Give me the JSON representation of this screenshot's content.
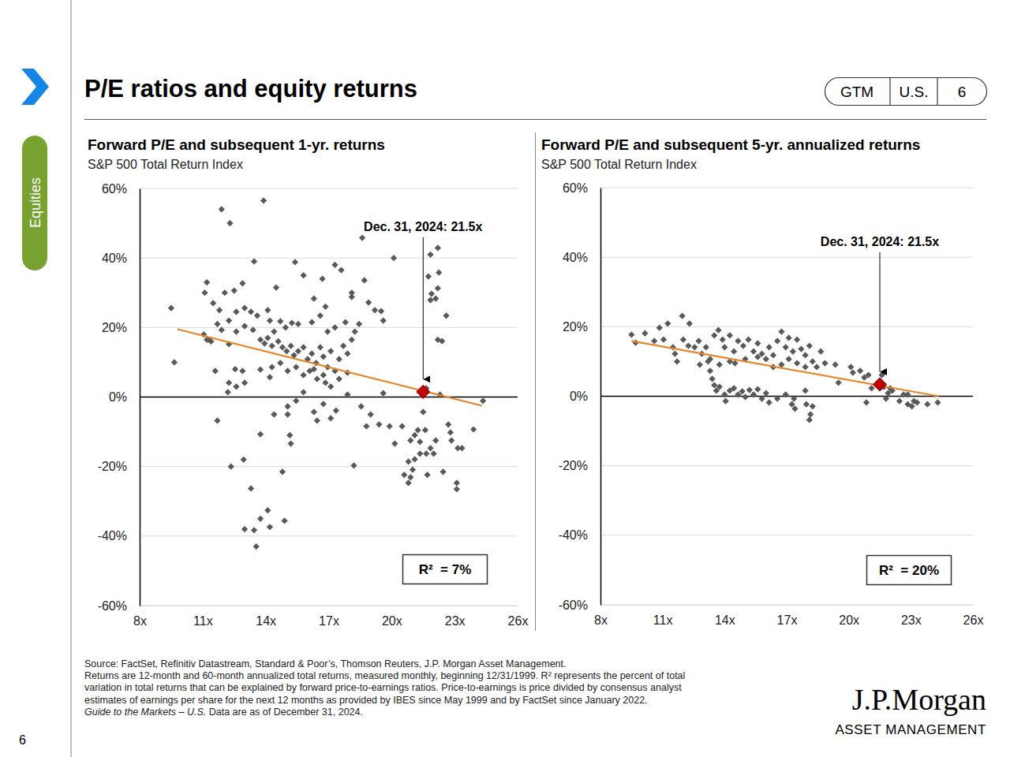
{
  "page": {
    "section": "Equities",
    "title": "P/E ratios and equity returns",
    "badge": [
      "GTM",
      "U.S.",
      "6"
    ],
    "footnotes": [
      "Source: FactSet, Refinitiv Datastream, Standard & Poor’s, Thomson Reuters, J.P. Morgan Asset Management.",
      "Returns are 12-month and 60-month annualized total returns, measured monthly, beginning 12/31/1999. R² represents the percent of total",
      "variation in total returns that can be explained by forward price-to-earnings ratios. Price-to-earnings is price divided by consensus analyst",
      "estimates of earnings per share for the next 12 months as provided by IBES since May 1999 and by FactSet since January 2022."
    ],
    "footnote_italic": "Guide to the Markets – U.S.",
    "footnote_rest": " Data are as of December 31, 2024.",
    "logo": "J.P.Morgan",
    "logo_sub": "ASSET MANAGEMENT",
    "page_number": "6"
  },
  "chart_data": [
    {
      "type": "scatter",
      "title": "Forward P/E and subsequent 1-yr. returns",
      "subtitle": "S&P 500 Total Return Index",
      "xlim": [
        8,
        26
      ],
      "xticks": [
        {
          "value": 8,
          "label": "8x"
        },
        {
          "value": 11,
          "label": "11x"
        },
        {
          "value": 14,
          "label": "14x"
        },
        {
          "value": 17,
          "label": "17x"
        },
        {
          "value": 20,
          "label": "20x"
        },
        {
          "value": 23,
          "label": "23x"
        },
        {
          "value": 26,
          "label": "26x"
        }
      ],
      "ylim": [
        -60,
        60
      ],
      "yticks": [
        {
          "value": -60,
          "label": "-60%"
        },
        {
          "value": -40,
          "label": "-40%"
        },
        {
          "value": -20,
          "label": "-20%"
        },
        {
          "value": 0,
          "label": "0%"
        },
        {
          "value": 20,
          "label": "20%"
        },
        {
          "value": 40,
          "label": "40%"
        },
        {
          "value": 60,
          "label": "60%"
        }
      ],
      "grid": true,
      "series": [
        {
          "type": "scatter",
          "marker": "diamond",
          "color": "#595959",
          "x": [
            9.5,
            9.65,
            11.9,
            12.3,
            13.9,
            11.2,
            11.1,
            11.5,
            12.05,
            12.5,
            12.9,
            13.45,
            14.5,
            15.4,
            15.8,
            16.7,
            17.3,
            17.6,
            18.6,
            20.1,
            18.7,
            18.1,
            18.1,
            18.9,
            19.2,
            19.5,
            19.6,
            11.8,
            11.05,
            11.2,
            11.4,
            11.7,
            11.9,
            12.25,
            12.6,
            13,
            13.3,
            13.6,
            14.1,
            14.2,
            14.4,
            14.7,
            14.95,
            15.25,
            15.55,
            13.75,
            13.95,
            14.1,
            14.3,
            14.6,
            14.8,
            15,
            15.2,
            15.35,
            15.55,
            15.8,
            16,
            16.2,
            16.4,
            16.6,
            16.75,
            16.95,
            17.1,
            17.3,
            17.5,
            17.7,
            17.9,
            18.1,
            18.25,
            18.45,
            17.8,
            17.3,
            16.95,
            16.6,
            16.2,
            16.3,
            16.85,
            16.1,
            16.45,
            16.85,
            17.1,
            17.5,
            17.9,
            16.75,
            16.3,
            15.8,
            15.45,
            15.05,
            14.7,
            14.3,
            14.2,
            13.75,
            12.9,
            12.55,
            12.25,
            12.6,
            13,
            12.2,
            11.6,
            11.3,
            13.4,
            13,
            12.6,
            12.25,
            11.7,
            12.35,
            12.95,
            13.3,
            13,
            13.45,
            13.55,
            13.75,
            14.1,
            14.2,
            14.9,
            13.75,
            14.4,
            14.8,
            15.15,
            15.2,
            15.05,
            15.05,
            15.45,
            15.8,
            16.3,
            16.75,
            17.1,
            16.45,
            17.35,
            17.9,
            18.2,
            18.55,
            18.8,
            19,
            19.4,
            19.6,
            19.9,
            20.15,
            20.5,
            20.6,
            20.8,
            20.9,
            21,
            21.1,
            20.9,
            21.25,
            21.35,
            21.5,
            21.6,
            21.65,
            21.7,
            21.85,
            21.35,
            21.1,
            20.8,
            22,
            22.1,
            22.45,
            22.7,
            22.85,
            23.1,
            23.1,
            23.15,
            23.35,
            23.9,
            24.35,
            22.8,
            21.85,
            22.2,
            21.75,
            21.9,
            22.2,
            22.1,
            21.85,
            22.25,
            22.2,
            22.4,
            22.6,
            22.3,
            21.65
          ],
          "values": [
            25.6,
            10,
            54,
            50,
            56.5,
            33,
            30,
            27,
            30,
            30.6,
            32.7,
            39,
            31.5,
            38.8,
            35,
            34,
            38,
            36.5,
            45.8,
            40,
            33.6,
            30,
            28.8,
            27.2,
            25,
            24.7,
            22,
            25,
            18,
            16.5,
            16,
            21,
            19.3,
            22,
            24.5,
            25.6,
            24.5,
            23.4,
            25,
            22,
            18.8,
            21.8,
            20,
            21.3,
            21,
            16.5,
            15.4,
            17,
            14.7,
            16,
            14.3,
            13.2,
            14.7,
            12,
            13.2,
            14.3,
            10.9,
            12.5,
            9.8,
            14.3,
            11.6,
            8.6,
            13.2,
            7.5,
            10.9,
            14.7,
            12.5,
            16.5,
            18.8,
            21,
            21.5,
            20,
            18.8,
            23.4,
            21.5,
            28.3,
            26,
            7.5,
            5.2,
            4.1,
            3,
            5.2,
            7,
            6.3,
            8,
            6.3,
            8.6,
            7.5,
            9.8,
            8.6,
            5.7,
            7.9,
            7.5,
            8,
            4.1,
            3,
            4.1,
            1.4,
            7.5,
            16.5,
            19.3,
            20.4,
            18.8,
            15.2,
            -6.8,
            -20,
            -18,
            -26.3,
            -38,
            -38.3,
            -43,
            -35,
            -32.6,
            -37.4,
            -35.6,
            -10.7,
            -5,
            -21.5,
            -11,
            -13.4,
            -2.7,
            -5,
            -1.1,
            1.4,
            -4.3,
            -2,
            -6.1,
            -6.8,
            -3.9,
            0.7,
            -19.7,
            -2.7,
            -8.4,
            -5,
            -7.9,
            1.1,
            -8.4,
            -13.4,
            -8.4,
            -22.4,
            -24.7,
            -23.1,
            -20.9,
            -17.9,
            -12.5,
            -9.5,
            -16.3,
            -4.3,
            -9.5,
            -16.3,
            -22.4,
            -14.7,
            -12.9,
            -11,
            -18.6,
            -16.3,
            -12.5,
            -21.5,
            -7.9,
            -12.5,
            -24.7,
            -26.5,
            -14.7,
            -14.7,
            -9.3,
            -1.1,
            -10.2,
            41,
            42.9,
            34.7,
            29.7,
            31.3,
            28.3,
            27.9,
            35.8,
            16.5,
            16.1,
            23.4,
            0.7,
            2.5
          ]
        },
        {
          "type": "line",
          "line_style": "solid",
          "color": "#e8862a",
          "x": [
            9.8,
            24.3
          ],
          "values": [
            19.5,
            -2.5
          ]
        },
        {
          "type": "scatter",
          "marker": "diamond",
          "color": "#c00000",
          "x": [
            21.5
          ],
          "values": [
            1.5
          ]
        }
      ],
      "annotations": [
        "Dec. 31, 2024: 21.5x",
        "R²  = 7%"
      ]
    },
    {
      "type": "scatter",
      "title": "Forward P/E and subsequent 5-yr. annualized returns",
      "subtitle": "S&P 500 Total Return Index",
      "xlim": [
        8,
        26
      ],
      "xticks": [
        {
          "value": 8,
          "label": "8x"
        },
        {
          "value": 11,
          "label": "11x"
        },
        {
          "value": 14,
          "label": "14x"
        },
        {
          "value": 17,
          "label": "17x"
        },
        {
          "value": 20,
          "label": "20x"
        },
        {
          "value": 23,
          "label": "23x"
        },
        {
          "value": 26,
          "label": "26x"
        }
      ],
      "ylim": [
        -60,
        60
      ],
      "yticks": [
        {
          "value": -60,
          "label": "-60%"
        },
        {
          "value": -40,
          "label": "-40%"
        },
        {
          "value": -20,
          "label": "-20%"
        },
        {
          "value": 0,
          "label": "0%"
        },
        {
          "value": 20,
          "label": "20%"
        },
        {
          "value": 40,
          "label": "40%"
        },
        {
          "value": 60,
          "label": "60%"
        }
      ],
      "grid": true,
      "series": [
        {
          "type": "scatter",
          "marker": "diamond",
          "color": "#595959",
          "x": [
            9.5,
            9.7,
            10.15,
            10.6,
            10.85,
            11.25,
            11.95,
            12.3,
            11.05,
            11.5,
            11.7,
            11.6,
            12,
            12.25,
            12.55,
            12.75,
            12.9,
            13.1,
            13.3,
            13.5,
            13.7,
            13.9,
            14,
            14.25,
            14.45,
            14.65,
            14.9,
            15.15,
            15.4,
            15.6,
            15.8,
            16,
            16.15,
            16.35,
            16.55,
            16.75,
            16.95,
            17.1,
            17.3,
            17.5,
            17.7,
            17.9,
            18.1,
            18.25,
            18.45,
            17.9,
            17.5,
            17.1,
            16.75,
            16.35,
            15.6,
            15,
            14.5,
            14.25,
            13.75,
            13.2,
            12.8,
            13.3,
            13.4,
            13.5,
            13.6,
            13.75,
            14,
            14.05,
            14.25,
            14.45,
            14.65,
            14.85,
            15,
            15.2,
            15.4,
            15.6,
            15.8,
            16,
            16.15,
            16.55,
            16.95,
            17.25,
            17.4,
            17.35,
            17.9,
            18.1,
            18.15,
            17.95,
            18.25,
            18.65,
            18.85,
            19.35,
            19.5,
            20.1,
            20.2,
            20.55,
            20.75,
            20.95,
            20.85,
            21.1,
            21.6,
            21.7,
            21.9,
            22.1,
            21.8,
            22,
            22.45,
            22.65,
            22.85,
            23.05,
            23.15,
            23.3,
            23.8,
            24.3,
            22.85
          ],
          "values": [
            17.7,
            15.4,
            18.1,
            15.9,
            19.7,
            20.9,
            23.1,
            20.9,
            16.3,
            14.1,
            10,
            12.2,
            16.3,
            14.5,
            14.1,
            15.9,
            12.2,
            14.1,
            10.7,
            17.5,
            19,
            16.3,
            14.1,
            17.5,
            12.9,
            15.9,
            14.5,
            16.3,
            12.9,
            15.2,
            12.2,
            10.7,
            14.1,
            11.8,
            15.9,
            18.6,
            14.1,
            16.8,
            12.9,
            16.3,
            13.6,
            11.8,
            14.5,
            10,
            8.4,
            8.4,
            9.5,
            10.7,
            9.1,
            8.4,
            11.3,
            10.7,
            9.5,
            10,
            9.1,
            10,
            9.1,
            7.3,
            5,
            3.2,
            1.6,
            2.7,
            0.5,
            -1.4,
            1.6,
            2.3,
            0.5,
            1.4,
            -0.2,
            1.8,
            0.5,
            2,
            -0.7,
            0.9,
            -1.8,
            -0.7,
            0.5,
            -2.3,
            -3.6,
            -0.7,
            1.6,
            -6.8,
            -5.2,
            -2.3,
            -2.9,
            12.9,
            9.5,
            9.1,
            3.9,
            8.4,
            6.8,
            7.3,
            5.4,
            6.1,
            -1.8,
            2.3,
            6.1,
            2.7,
            0.9,
            1.6,
            -0.7,
            2.3,
            -1.4,
            0.5,
            -2.3,
            -2.9,
            -1.4,
            -1.8,
            -2.3,
            -1.8,
            0.5
          ]
        },
        {
          "type": "line",
          "line_style": "solid",
          "color": "#e8862a",
          "x": [
            9.5,
            24.35
          ],
          "values": [
            15.9,
            0
          ]
        },
        {
          "type": "scatter",
          "marker": "diamond",
          "color": "#c00000",
          "x": [
            21.5
          ],
          "values": [
            3.4
          ]
        }
      ],
      "annotations": [
        "Dec. 31, 2024: 21.5x",
        "R²  = 20%"
      ]
    }
  ]
}
